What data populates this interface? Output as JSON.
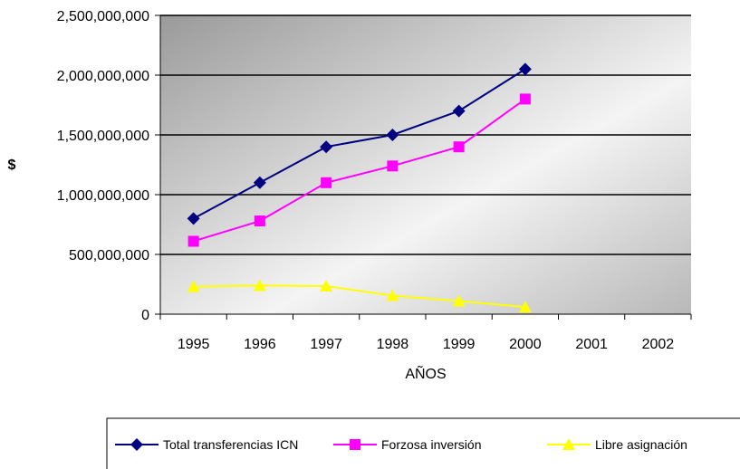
{
  "chart_data": {
    "type": "line",
    "title": "",
    "xlabel": "AÑOS",
    "ylabel": "$",
    "categories": [
      "1995",
      "1996",
      "1997",
      "1998",
      "1999",
      "2000",
      "2001",
      "2002"
    ],
    "ylim": [
      0,
      2500000000
    ],
    "yticks": [
      0,
      500000000,
      1000000000,
      1500000000,
      2000000000,
      2500000000
    ],
    "ytick_labels": [
      "0",
      "500,000,000",
      "1,000,000,000",
      "1,500,000,000",
      "2,000,000,000",
      "2,500,000,000"
    ],
    "grid": true,
    "legend_position": "bottom",
    "series": [
      {
        "name": "Total transferencias ICN",
        "color": "#000080",
        "marker": "diamond",
        "values": [
          800000000,
          1100000000,
          1400000000,
          1500000000,
          1700000000,
          2050000000,
          null,
          null
        ]
      },
      {
        "name": "Forzosa inversión",
        "color": "#ff00ff",
        "marker": "square",
        "values": [
          610000000,
          780000000,
          1100000000,
          1240000000,
          1400000000,
          1800000000,
          null,
          null
        ]
      },
      {
        "name": "Libre asignación",
        "color": "#ffff00",
        "marker": "triangle",
        "values": [
          230000000,
          240000000,
          235000000,
          155000000,
          110000000,
          60000000,
          null,
          null
        ]
      }
    ]
  }
}
